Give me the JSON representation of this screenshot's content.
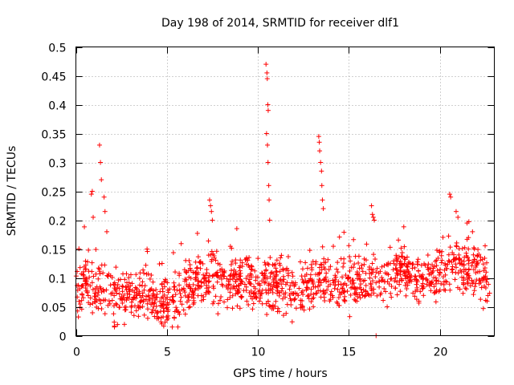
{
  "chart_data": {
    "type": "scatter",
    "title": "Day 198 of 2014, SRMTID for receiver dlf1",
    "xlabel": "GPS time / hours",
    "ylabel": "SRMTID / TECUs",
    "xlim": [
      0,
      23
    ],
    "ylim": [
      0,
      0.5
    ],
    "xticks": [
      0,
      5,
      10,
      15,
      20
    ],
    "xtick_labels": [
      "0",
      "5",
      "10",
      "15",
      "20"
    ],
    "yticks": [
      0,
      0.05,
      0.1,
      0.15,
      0.2,
      0.25,
      0.3,
      0.35,
      0.4,
      0.45,
      0.5
    ],
    "ytick_labels": [
      "0",
      "0.05",
      "0.1",
      "0.15",
      "0.2",
      "0.25",
      "0.3",
      "0.35",
      "0.4",
      "0.45",
      "0.5"
    ],
    "grid": true,
    "marker": "+",
    "color": "#ff0000",
    "series": [
      {
        "name": "SRMTID",
        "profile": [
          [
            0.0,
            0.07
          ],
          [
            0.5,
            0.09
          ],
          [
            1.0,
            0.075
          ],
          [
            1.5,
            0.08
          ],
          [
            2.0,
            0.065
          ],
          [
            2.5,
            0.07
          ],
          [
            3.0,
            0.065
          ],
          [
            3.5,
            0.07
          ],
          [
            4.0,
            0.075
          ],
          [
            4.5,
            0.06
          ],
          [
            5.0,
            0.055
          ],
          [
            5.5,
            0.06
          ],
          [
            6.0,
            0.075
          ],
          [
            6.5,
            0.09
          ],
          [
            7.0,
            0.1
          ],
          [
            7.5,
            0.11
          ],
          [
            8.0,
            0.095
          ],
          [
            8.5,
            0.1
          ],
          [
            9.0,
            0.095
          ],
          [
            9.5,
            0.1
          ],
          [
            10.0,
            0.09
          ],
          [
            10.5,
            0.095
          ],
          [
            11.0,
            0.085
          ],
          [
            11.5,
            0.09
          ],
          [
            12.0,
            0.08
          ],
          [
            12.5,
            0.075
          ],
          [
            13.0,
            0.09
          ],
          [
            13.5,
            0.1
          ],
          [
            14.0,
            0.085
          ],
          [
            14.5,
            0.08
          ],
          [
            15.0,
            0.09
          ],
          [
            15.5,
            0.1
          ],
          [
            16.0,
            0.095
          ],
          [
            16.5,
            0.1
          ],
          [
            17.0,
            0.09
          ],
          [
            17.5,
            0.11
          ],
          [
            18.0,
            0.115
          ],
          [
            18.5,
            0.1
          ],
          [
            19.0,
            0.095
          ],
          [
            19.5,
            0.1
          ],
          [
            20.0,
            0.11
          ],
          [
            20.5,
            0.12
          ],
          [
            21.0,
            0.125
          ],
          [
            21.5,
            0.12
          ],
          [
            22.0,
            0.11
          ],
          [
            22.5,
            0.095
          ],
          [
            22.75,
            0.06
          ]
        ],
        "spikes": [
          [
            0.85,
            0.245
          ],
          [
            0.9,
            0.25
          ],
          [
            0.95,
            0.205
          ],
          [
            1.3,
            0.33
          ],
          [
            1.35,
            0.3
          ],
          [
            1.4,
            0.27
          ],
          [
            1.55,
            0.24
          ],
          [
            1.6,
            0.215
          ],
          [
            1.7,
            0.18
          ],
          [
            7.35,
            0.235
          ],
          [
            7.4,
            0.225
          ],
          [
            7.45,
            0.215
          ],
          [
            7.5,
            0.2
          ],
          [
            10.45,
            0.47
          ],
          [
            10.5,
            0.455
          ],
          [
            10.52,
            0.445
          ],
          [
            10.55,
            0.4
          ],
          [
            10.57,
            0.39
          ],
          [
            10.48,
            0.35
          ],
          [
            10.53,
            0.33
          ],
          [
            10.56,
            0.3
          ],
          [
            10.6,
            0.26
          ],
          [
            10.62,
            0.235
          ],
          [
            10.65,
            0.2
          ],
          [
            13.35,
            0.345
          ],
          [
            13.38,
            0.335
          ],
          [
            13.4,
            0.32
          ],
          [
            13.45,
            0.3
          ],
          [
            13.5,
            0.285
          ],
          [
            13.52,
            0.26
          ],
          [
            13.55,
            0.235
          ],
          [
            13.6,
            0.22
          ],
          [
            16.25,
            0.225
          ],
          [
            16.3,
            0.21
          ],
          [
            16.35,
            0.205
          ],
          [
            16.4,
            0.2
          ],
          [
            20.55,
            0.245
          ],
          [
            20.6,
            0.24
          ],
          [
            20.9,
            0.215
          ],
          [
            21.0,
            0.205
          ],
          [
            21.5,
            0.195
          ],
          [
            21.8,
            0.18
          ]
        ],
        "n_points": 1400,
        "x_range": [
          0.0,
          22.75
        ]
      }
    ]
  }
}
